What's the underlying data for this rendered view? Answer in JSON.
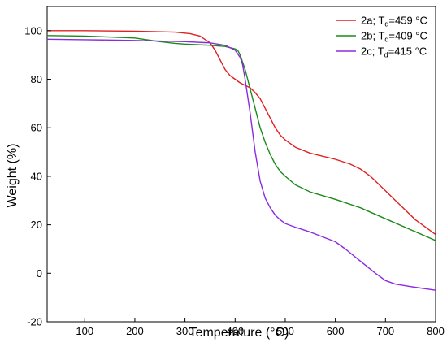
{
  "chart_data": {
    "type": "line",
    "xlabel": "Temperature (°C)",
    "ylabel": "Weight (%)",
    "xlim": [
      25,
      800
    ],
    "ylim": [
      -20,
      110
    ],
    "xticks": [
      100,
      200,
      300,
      400,
      500,
      600,
      700,
      800
    ],
    "yticks": [
      -20,
      0,
      20,
      40,
      60,
      80,
      100
    ],
    "grid": false,
    "legend_position": "top-right",
    "series": [
      {
        "legend": {
          "prefix": "2a; T",
          "sub": "d",
          "suffix": "=459 °C"
        },
        "color": "#e02020",
        "x": [
          25,
          100,
          200,
          280,
          310,
          330,
          350,
          360,
          370,
          380,
          390,
          400,
          410,
          420,
          430,
          440,
          450,
          460,
          470,
          480,
          490,
          500,
          520,
          550,
          600,
          630,
          650,
          670,
          700,
          730,
          760,
          800
        ],
        "y": [
          100,
          100,
          99.8,
          99.4,
          98.8,
          97.8,
          95,
          92,
          88,
          84,
          81.5,
          80,
          78.5,
          77.5,
          76.5,
          74.5,
          72,
          68,
          64,
          60,
          57,
          55,
          52,
          49.5,
          47,
          45,
          43,
          40,
          34,
          28,
          22,
          16
        ]
      },
      {
        "legend": {
          "prefix": "2b; T",
          "sub": "d",
          "suffix": "=409 °C"
        },
        "color": "#1a8a1a",
        "x": [
          25,
          100,
          200,
          250,
          280,
          300,
          350,
          380,
          400,
          405,
          410,
          420,
          430,
          440,
          450,
          460,
          470,
          480,
          490,
          500,
          520,
          550,
          600,
          650,
          700,
          750,
          800
        ],
        "y": [
          98,
          97.8,
          97,
          95.5,
          94.8,
          94.5,
          94,
          93.5,
          92.5,
          92,
          90,
          84,
          76,
          68,
          60,
          54,
          49,
          45,
          42,
          40,
          36.5,
          33.5,
          30.5,
          27,
          22.5,
          18,
          13.5
        ]
      },
      {
        "legend": {
          "prefix": "2c; T",
          "sub": "d",
          "suffix": "=415 °C"
        },
        "color": "#8a2be2",
        "x": [
          25,
          100,
          200,
          300,
          350,
          380,
          400,
          410,
          415,
          420,
          430,
          440,
          450,
          460,
          470,
          480,
          490,
          500,
          520,
          550,
          600,
          620,
          650,
          680,
          700,
          720,
          750,
          800
        ],
        "y": [
          96.5,
          96.3,
          96,
          95.5,
          95,
          94,
          92,
          89,
          86,
          80,
          66,
          50,
          38,
          31,
          27,
          24,
          22,
          20.5,
          19,
          17,
          13,
          10,
          5,
          0,
          -3,
          -4.5,
          -5.5,
          -7
        ]
      }
    ]
  }
}
